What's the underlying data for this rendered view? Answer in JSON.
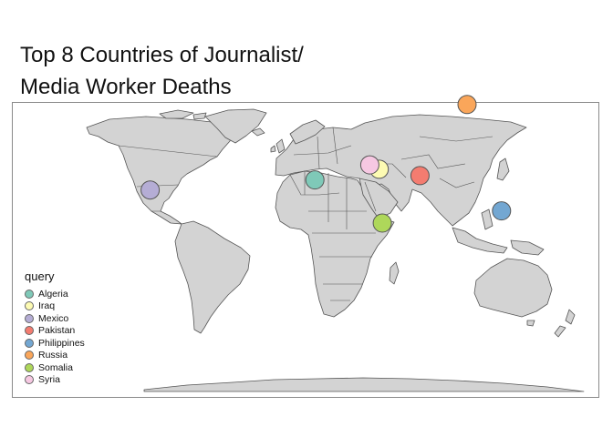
{
  "title_lines": [
    "Top 8 Countries of Journalist/",
    "Media Worker Deaths"
  ],
  "legend": {
    "title": "query",
    "items": [
      {
        "label": "Algeria",
        "color": "#7fc9b8",
        "lon": 3,
        "lat": 28
      },
      {
        "label": "Iraq",
        "color": "#fdfbb3",
        "lon": 44,
        "lat": 33
      },
      {
        "label": "Mexico",
        "color": "#b5add5",
        "lon": -102,
        "lat": 23
      },
      {
        "label": "Pakistan",
        "color": "#f47c70",
        "lon": 70,
        "lat": 30
      },
      {
        "label": "Philippines",
        "color": "#73a7d2",
        "lon": 122,
        "lat": 12
      },
      {
        "label": "Russia",
        "color": "#faa65a",
        "lon": 100,
        "lat": 60
      },
      {
        "label": "Somalia",
        "color": "#aed75a",
        "lon": 46,
        "lat": 5
      },
      {
        "label": "Syria",
        "color": "#f6c8e2",
        "lon": 38,
        "lat": 35
      }
    ]
  }
}
